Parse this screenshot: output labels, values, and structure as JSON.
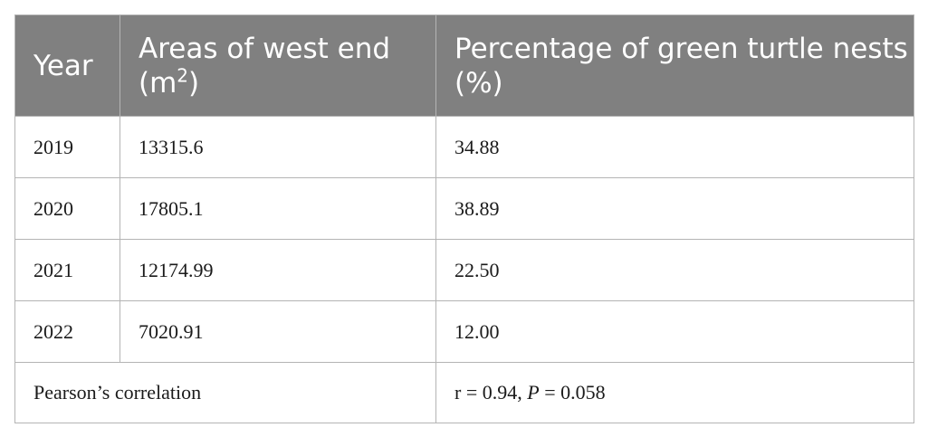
{
  "table": {
    "headers": {
      "year": "Year",
      "area_prefix": "Areas of west end (m",
      "area_sup": "2",
      "area_suffix": ")",
      "percentage": "Percentage of green turtle nests (%)"
    },
    "rows": [
      {
        "year": "2019",
        "area": "13315.6",
        "percentage": "34.88"
      },
      {
        "year": "2020",
        "area": "17805.1",
        "percentage": "38.89"
      },
      {
        "year": "2021",
        "area": "12174.99",
        "percentage": "22.50"
      },
      {
        "year": "2022",
        "area": "7020.91",
        "percentage": "12.00"
      }
    ],
    "footer": {
      "label": "Pearson’s correlation",
      "r_text": "r = 0.94, ",
      "p_symbol": "P",
      "p_text": " = 0.058"
    }
  },
  "colors": {
    "header_bg": "#808080",
    "header_text": "#ffffff",
    "border": "#b4b4b4"
  }
}
